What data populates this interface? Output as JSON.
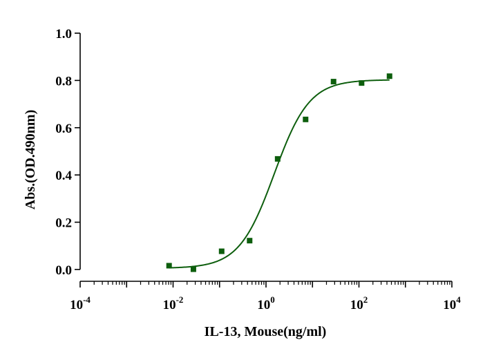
{
  "chart_data": {
    "type": "scatter",
    "title": "",
    "xlabel": "IL-13, Mouse(ng/ml)",
    "ylabel": "Abs.(OD.490nm)",
    "x_scale": "log10",
    "xlim": [
      0.0001,
      10000
    ],
    "ylim": [
      -0.05,
      1.0
    ],
    "x_ticks": [
      {
        "value": 0.0001,
        "base": "10",
        "exp": "-4"
      },
      {
        "value": 0.01,
        "base": "10",
        "exp": "-2"
      },
      {
        "value": 1,
        "base": "10",
        "exp": "0"
      },
      {
        "value": 100,
        "base": "10",
        "exp": "2"
      },
      {
        "value": 10000,
        "base": "10",
        "exp": "4"
      }
    ],
    "y_ticks": [
      0.0,
      0.2,
      0.4,
      0.6,
      0.8,
      1.0
    ],
    "y_tick_labels": [
      "0.0",
      "0.2",
      "0.4",
      "0.6",
      "0.8",
      "1.0"
    ],
    "grid": false,
    "marker_color": "#0d5e0d",
    "curve_color": "#0d5e0d",
    "series": [
      {
        "points": [
          {
            "x": 0.0082,
            "y": 0.016
          },
          {
            "x": 0.0274,
            "y": 0.001
          },
          {
            "x": 0.111,
            "y": 0.077
          },
          {
            "x": 0.444,
            "y": 0.122
          },
          {
            "x": 1.78,
            "y": 0.468
          },
          {
            "x": 7.11,
            "y": 0.635
          },
          {
            "x": 28.4,
            "y": 0.795
          },
          {
            "x": 114,
            "y": 0.789
          },
          {
            "x": 455,
            "y": 0.818
          }
        ]
      }
    ],
    "fit": {
      "model": "4PL",
      "bottom": 0.005,
      "top": 0.803,
      "ec50": 1.5,
      "hill": 1.15,
      "x_range": [
        0.0082,
        455
      ]
    }
  }
}
